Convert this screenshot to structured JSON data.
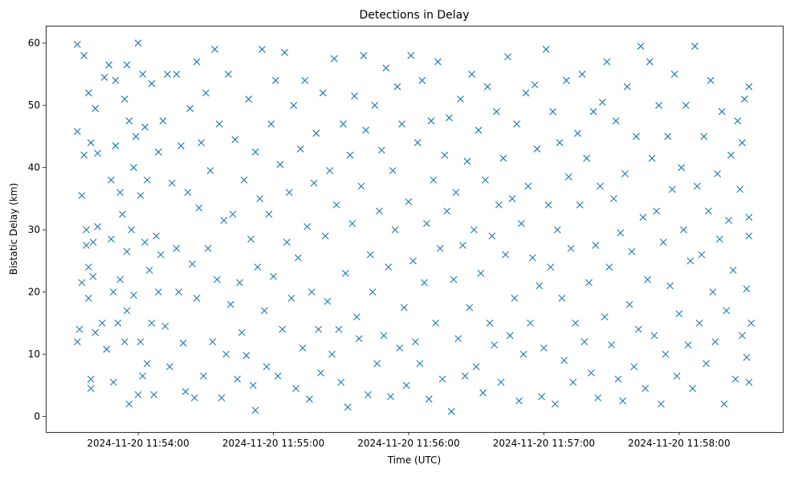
{
  "chart_data": {
    "type": "scatter",
    "title": "Detections in Delay",
    "xlabel": "Time (UTC)",
    "ylabel": "Bistatic Delay (km)",
    "x_unit": "seconds after 2024-11-20 11:53:00 UTC",
    "xlim": [
      19,
      346
    ],
    "ylim": [
      -2.5,
      62.8
    ],
    "x_ticks": [
      {
        "value": 60,
        "label": "2024-11-20 11:54:00"
      },
      {
        "value": 120,
        "label": "2024-11-20 11:55:00"
      },
      {
        "value": 180,
        "label": "2024-11-20 11:56:00"
      },
      {
        "value": 240,
        "label": "2024-11-20 11:57:00"
      },
      {
        "value": 300,
        "label": "2024-11-20 11:58:00"
      }
    ],
    "y_ticks": [
      {
        "value": 0,
        "label": "0"
      },
      {
        "value": 10,
        "label": "10"
      },
      {
        "value": 20,
        "label": "20"
      },
      {
        "value": 30,
        "label": "30"
      },
      {
        "value": 40,
        "label": "40"
      },
      {
        "value": 50,
        "label": "50"
      },
      {
        "value": 60,
        "label": "60"
      }
    ],
    "grid": false,
    "marker": "x",
    "color": "#1f77b4",
    "points": [
      [
        33,
        59.8
      ],
      [
        33,
        45.8
      ],
      [
        33,
        12
      ],
      [
        34,
        14
      ],
      [
        35,
        21.5
      ],
      [
        35,
        35.5
      ],
      [
        36,
        42
      ],
      [
        36,
        58
      ],
      [
        37,
        30
      ],
      [
        37,
        27.5
      ],
      [
        38,
        24
      ],
      [
        38,
        19
      ],
      [
        38,
        52
      ],
      [
        39,
        44
      ],
      [
        39,
        6
      ],
      [
        39,
        4.5
      ],
      [
        40,
        28
      ],
      [
        40,
        22.5
      ],
      [
        41,
        49.5
      ],
      [
        41,
        13.5
      ],
      [
        42,
        30.5
      ],
      [
        42,
        42.3
      ],
      [
        44,
        15
      ],
      [
        45,
        54.5
      ],
      [
        46,
        10.8
      ],
      [
        47,
        56.5
      ],
      [
        48,
        38
      ],
      [
        48,
        28.5
      ],
      [
        49,
        20
      ],
      [
        49,
        5.5
      ],
      [
        50,
        54
      ],
      [
        50,
        43.5
      ],
      [
        51,
        15
      ],
      [
        52,
        36
      ],
      [
        52,
        22
      ],
      [
        53,
        32.5
      ],
      [
        54,
        51
      ],
      [
        54,
        12
      ],
      [
        55,
        56.5
      ],
      [
        55,
        17
      ],
      [
        55,
        26.5
      ],
      [
        56,
        2
      ],
      [
        56,
        47.5
      ],
      [
        57,
        30
      ],
      [
        58,
        40
      ],
      [
        58,
        19.5
      ],
      [
        59,
        45
      ],
      [
        60,
        60
      ],
      [
        60,
        3.5
      ],
      [
        61,
        12
      ],
      [
        61,
        35.5
      ],
      [
        62,
        55
      ],
      [
        62,
        6.5
      ],
      [
        63,
        28
      ],
      [
        63,
        46.5
      ],
      [
        64,
        8.5
      ],
      [
        64,
        38
      ],
      [
        65,
        23.5
      ],
      [
        66,
        15
      ],
      [
        66,
        53.5
      ],
      [
        67,
        3.5
      ],
      [
        68,
        29
      ],
      [
        69,
        42.5
      ],
      [
        69,
        20
      ],
      [
        70,
        26
      ],
      [
        71,
        47.5
      ],
      [
        72,
        14.5
      ],
      [
        73,
        55
      ],
      [
        74,
        8
      ],
      [
        75,
        37.5
      ],
      [
        77,
        27
      ],
      [
        77,
        55
      ],
      [
        78,
        20
      ],
      [
        79,
        43.5
      ],
      [
        80,
        11.8
      ],
      [
        81,
        4
      ],
      [
        82,
        36
      ],
      [
        83,
        49.5
      ],
      [
        84,
        24.5
      ],
      [
        85,
        3
      ],
      [
        86,
        19
      ],
      [
        86,
        57
      ],
      [
        87,
        33.5
      ],
      [
        88,
        44
      ],
      [
        89,
        6.5
      ],
      [
        90,
        52
      ],
      [
        91,
        27
      ],
      [
        92,
        39.5
      ],
      [
        93,
        12
      ],
      [
        94,
        59
      ],
      [
        95,
        22
      ],
      [
        96,
        47
      ],
      [
        97,
        3
      ],
      [
        98,
        31.5
      ],
      [
        99,
        10
      ],
      [
        100,
        55
      ],
      [
        101,
        18
      ],
      [
        102,
        32.5
      ],
      [
        103,
        44.5
      ],
      [
        104,
        6
      ],
      [
        105,
        21.5
      ],
      [
        106,
        13.5
      ],
      [
        107,
        38
      ],
      [
        108,
        9.8
      ],
      [
        109,
        51
      ],
      [
        110,
        28.5
      ],
      [
        111,
        5
      ],
      [
        112,
        1
      ],
      [
        112,
        42.5
      ],
      [
        113,
        24
      ],
      [
        114,
        35
      ],
      [
        115,
        59
      ],
      [
        116,
        17
      ],
      [
        117,
        8
      ],
      [
        118,
        32.5
      ],
      [
        119,
        47
      ],
      [
        120,
        22.5
      ],
      [
        121,
        54
      ],
      [
        122,
        6.5
      ],
      [
        123,
        40.5
      ],
      [
        124,
        14
      ],
      [
        125,
        58.5
      ],
      [
        126,
        28
      ],
      [
        127,
        36
      ],
      [
        128,
        19
      ],
      [
        129,
        50
      ],
      [
        130,
        4.5
      ],
      [
        131,
        25.5
      ],
      [
        132,
        43
      ],
      [
        133,
        11
      ],
      [
        134,
        54
      ],
      [
        135,
        30.5
      ],
      [
        136,
        2.8
      ],
      [
        137,
        20
      ],
      [
        138,
        37.5
      ],
      [
        139,
        45.5
      ],
      [
        140,
        14
      ],
      [
        141,
        7
      ],
      [
        142,
        52
      ],
      [
        143,
        29
      ],
      [
        144,
        18.5
      ],
      [
        145,
        39.5
      ],
      [
        146,
        10
      ],
      [
        147,
        57.5
      ],
      [
        148,
        34
      ],
      [
        149,
        14
      ],
      [
        150,
        5.5
      ],
      [
        151,
        47
      ],
      [
        152,
        23
      ],
      [
        153,
        1.5
      ],
      [
        154,
        42
      ],
      [
        155,
        31
      ],
      [
        156,
        51.5
      ],
      [
        157,
        16
      ],
      [
        158,
        12.5
      ],
      [
        159,
        37
      ],
      [
        160,
        58
      ],
      [
        161,
        46
      ],
      [
        162,
        3.5
      ],
      [
        163,
        26
      ],
      [
        164,
        20
      ],
      [
        165,
        50
      ],
      [
        166,
        8.5
      ],
      [
        167,
        33
      ],
      [
        168,
        42.8
      ],
      [
        169,
        13
      ],
      [
        170,
        56
      ],
      [
        171,
        24
      ],
      [
        172,
        3.2
      ],
      [
        173,
        39.5
      ],
      [
        174,
        30
      ],
      [
        175,
        53
      ],
      [
        176,
        11
      ],
      [
        177,
        47
      ],
      [
        178,
        17.5
      ],
      [
        179,
        5
      ],
      [
        180,
        34.5
      ],
      [
        181,
        58
      ],
      [
        182,
        25
      ],
      [
        183,
        12
      ],
      [
        184,
        44
      ],
      [
        185,
        8.5
      ],
      [
        186,
        54
      ],
      [
        187,
        21.5
      ],
      [
        188,
        31
      ],
      [
        189,
        2.8
      ],
      [
        190,
        47.5
      ],
      [
        191,
        38
      ],
      [
        192,
        15
      ],
      [
        193,
        57
      ],
      [
        194,
        27
      ],
      [
        195,
        6
      ],
      [
        196,
        42
      ],
      [
        197,
        33
      ],
      [
        198,
        48
      ],
      [
        199,
        0.8
      ],
      [
        200,
        22
      ],
      [
        201,
        36
      ],
      [
        202,
        12.5
      ],
      [
        203,
        51
      ],
      [
        204,
        27.5
      ],
      [
        205,
        6.5
      ],
      [
        206,
        41
      ],
      [
        207,
        17.5
      ],
      [
        208,
        55
      ],
      [
        209,
        30
      ],
      [
        210,
        8
      ],
      [
        211,
        46
      ],
      [
        212,
        23
      ],
      [
        213,
        3.8
      ],
      [
        214,
        38
      ],
      [
        215,
        53
      ],
      [
        216,
        15
      ],
      [
        217,
        29
      ],
      [
        218,
        11.5
      ],
      [
        219,
        49
      ],
      [
        220,
        34
      ],
      [
        221,
        5.5
      ],
      [
        222,
        41.5
      ],
      [
        223,
        26
      ],
      [
        224,
        57.8
      ],
      [
        225,
        13
      ],
      [
        226,
        35
      ],
      [
        227,
        19
      ],
      [
        228,
        47
      ],
      [
        229,
        2.5
      ],
      [
        230,
        31
      ],
      [
        231,
        10
      ],
      [
        232,
        52
      ],
      [
        233,
        37
      ],
      [
        234,
        15
      ],
      [
        235,
        25.5
      ],
      [
        236,
        53.3
      ],
      [
        237,
        43
      ],
      [
        238,
        21
      ],
      [
        239,
        3.2
      ],
      [
        240,
        11
      ],
      [
        241,
        59
      ],
      [
        242,
        34
      ],
      [
        243,
        24
      ],
      [
        244,
        49
      ],
      [
        245,
        2
      ],
      [
        246,
        30
      ],
      [
        247,
        44
      ],
      [
        248,
        19
      ],
      [
        249,
        9
      ],
      [
        250,
        54
      ],
      [
        251,
        38.5
      ],
      [
        252,
        27
      ],
      [
        253,
        5.5
      ],
      [
        254,
        15
      ],
      [
        255,
        45.5
      ],
      [
        256,
        34
      ],
      [
        257,
        55
      ],
      [
        258,
        12
      ],
      [
        259,
        41.5
      ],
      [
        260,
        21.5
      ],
      [
        261,
        7
      ],
      [
        262,
        49
      ],
      [
        263,
        27.5
      ],
      [
        264,
        3
      ],
      [
        265,
        37
      ],
      [
        266,
        50.5
      ],
      [
        267,
        16
      ],
      [
        268,
        57
      ],
      [
        269,
        24
      ],
      [
        270,
        11.5
      ],
      [
        271,
        35
      ],
      [
        272,
        47.5
      ],
      [
        273,
        6
      ],
      [
        274,
        29.5
      ],
      [
        275,
        2.5
      ],
      [
        276,
        39
      ],
      [
        277,
        53
      ],
      [
        278,
        18
      ],
      [
        279,
        26.5
      ],
      [
        280,
        8
      ],
      [
        281,
        45
      ],
      [
        282,
        14
      ],
      [
        283,
        59.5
      ],
      [
        284,
        32
      ],
      [
        285,
        4.5
      ],
      [
        286,
        22
      ],
      [
        287,
        57
      ],
      [
        288,
        41.5
      ],
      [
        289,
        13
      ],
      [
        290,
        33
      ],
      [
        291,
        50
      ],
      [
        292,
        2
      ],
      [
        293,
        28
      ],
      [
        294,
        10
      ],
      [
        295,
        45
      ],
      [
        296,
        21
      ],
      [
        297,
        36.5
      ],
      [
        298,
        55
      ],
      [
        299,
        6.5
      ],
      [
        300,
        16.5
      ],
      [
        301,
        40
      ],
      [
        302,
        30
      ],
      [
        303,
        50
      ],
      [
        304,
        11.5
      ],
      [
        305,
        25
      ],
      [
        306,
        4.5
      ],
      [
        307,
        59.5
      ],
      [
        308,
        37
      ],
      [
        309,
        15
      ],
      [
        310,
        26
      ],
      [
        311,
        45
      ],
      [
        312,
        8.5
      ],
      [
        313,
        33
      ],
      [
        314,
        54
      ],
      [
        315,
        20
      ],
      [
        316,
        12
      ],
      [
        317,
        39
      ],
      [
        318,
        28.5
      ],
      [
        319,
        49
      ],
      [
        320,
        2
      ],
      [
        321,
        17
      ],
      [
        322,
        31.5
      ],
      [
        323,
        42
      ],
      [
        324,
        23.5
      ],
      [
        325,
        6
      ],
      [
        326,
        47.5
      ],
      [
        327,
        36.5
      ],
      [
        328,
        13
      ],
      [
        329,
        51
      ],
      [
        330,
        20.5
      ],
      [
        331,
        29
      ],
      [
        331,
        53
      ],
      [
        332,
        15
      ],
      [
        331,
        5.5
      ],
      [
        331,
        32
      ],
      [
        330,
        9.5
      ],
      [
        328,
        44
      ]
    ]
  }
}
